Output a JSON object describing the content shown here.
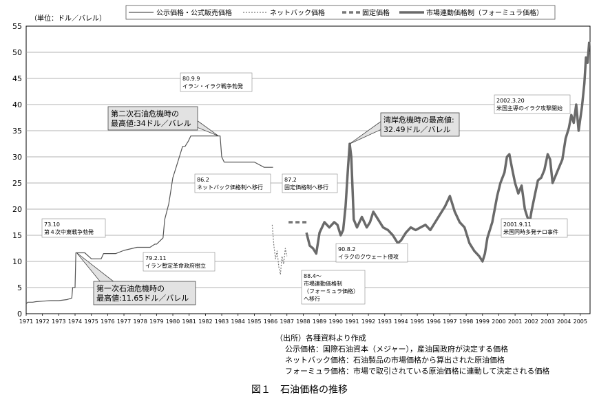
{
  "chart_data": {
    "type": "line",
    "unit_label": "（単位：ドル／バレル）",
    "ylim": [
      0,
      55
    ],
    "y_ticks": [
      0,
      5,
      10,
      15,
      20,
      25,
      30,
      35,
      40,
      45,
      50,
      55
    ],
    "xlim": [
      1971,
      2005.6
    ],
    "x_tick_labels": [
      "1971",
      "1972",
      "1973",
      "1974",
      "1975",
      "1976",
      "1977",
      "1978",
      "1979",
      "1980",
      "1981",
      "1982",
      "1983",
      "1984",
      "1985",
      "1986",
      "1987",
      "1988",
      "1989",
      "1990",
      "1991",
      "1992",
      "1993",
      "1994",
      "1995",
      "1996",
      "1997",
      "1998",
      "1999",
      "2000",
      "2001",
      "2002",
      "2003",
      "2004",
      "2005"
    ],
    "grid": "horizontal",
    "legend": "top",
    "series": [
      {
        "name": "公示価格・公式販売価格",
        "style": "thin",
        "color": "#555555",
        "x": [
          1971.0,
          1971.1,
          1971.4,
          1971.6,
          1972.0,
          1972.5,
          1973.0,
          1973.5,
          1973.8,
          1973.85,
          1974.0,
          1974.05,
          1974.6,
          1975.0,
          1975.6,
          1975.75,
          1976.5,
          1977.0,
          1977.8,
          1978.6,
          1978.9,
          1979.0,
          1979.4,
          1979.5,
          1979.75,
          1979.9,
          1980.0,
          1980.2,
          1980.4,
          1980.6,
          1980.75,
          1980.95,
          1981.1,
          1981.9,
          1982.0,
          1982.9,
          1983.0,
          1983.15,
          1984.0,
          1985.0,
          1985.6,
          1985.75,
          1986.15
        ],
        "y": [
          1.9,
          2.2,
          2.2,
          2.3,
          2.4,
          2.5,
          2.5,
          2.7,
          3.0,
          5.0,
          5.0,
          11.65,
          11.65,
          10.5,
          10.5,
          11.5,
          11.5,
          12.1,
          12.7,
          12.7,
          13.3,
          13.3,
          14.5,
          18.0,
          21.0,
          24.0,
          26.0,
          28.0,
          30.0,
          32.0,
          32.0,
          33.0,
          34.0,
          34.0,
          34.0,
          34.0,
          30.0,
          29.0,
          29.0,
          29.0,
          28.0,
          28.0,
          28.0
        ]
      },
      {
        "name": "ネットバック価格",
        "style": "dotted",
        "color": "#777777",
        "x": [
          1986.1,
          1986.2,
          1986.3,
          1986.4,
          1986.5,
          1986.6,
          1986.7,
          1986.8,
          1986.9,
          1987.0
        ],
        "y": [
          17.0,
          13.0,
          10.5,
          12.0,
          9.0,
          7.5,
          11.0,
          9.5,
          12.5,
          11.0
        ]
      },
      {
        "name": "固定価格",
        "style": "dashed",
        "color": "#777777",
        "x": [
          1987.1,
          1988.2
        ],
        "y": [
          17.5,
          17.5
        ]
      },
      {
        "name": "市場連動価格制（フォーミュラ価格）",
        "style": "thick",
        "color": "#6a6a6a",
        "x": [
          1988.2,
          1988.4,
          1988.6,
          1988.8,
          1989.0,
          1989.3,
          1989.6,
          1989.9,
          1990.1,
          1990.3,
          1990.45,
          1990.6,
          1990.75,
          1990.85,
          1990.95,
          1991.1,
          1991.3,
          1991.6,
          1991.9,
          1992.1,
          1992.3,
          1992.6,
          1992.9,
          1993.2,
          1993.5,
          1993.8,
          1994.0,
          1994.3,
          1994.6,
          1994.9,
          1995.2,
          1995.5,
          1995.8,
          1996.1,
          1996.4,
          1996.7,
          1997.0,
          1997.3,
          1997.6,
          1997.9,
          1998.2,
          1998.5,
          1998.8,
          1999.0,
          1999.15,
          1999.3,
          1999.6,
          1999.9,
          2000.1,
          2000.35,
          2000.5,
          2000.65,
          2000.8,
          2001.0,
          2001.2,
          2001.4,
          2001.6,
          2001.75,
          2001.9,
          2002.0,
          2002.2,
          2002.4,
          2002.6,
          2002.8,
          2003.0,
          2003.15,
          2003.3,
          2003.5,
          2003.7,
          2003.9,
          2004.1,
          2004.3,
          2004.45,
          2004.6,
          2004.75,
          2004.9,
          2005.1,
          2005.25,
          2005.35,
          2005.45,
          2005.55
        ],
        "y": [
          15.5,
          13.0,
          12.5,
          11.5,
          15.5,
          17.5,
          16.5,
          17.5,
          17.0,
          15.0,
          16.0,
          20.5,
          28.0,
          32.49,
          30.0,
          18.0,
          16.5,
          18.5,
          16.5,
          17.5,
          19.5,
          18.0,
          16.5,
          16.0,
          15.0,
          13.5,
          14.0,
          15.5,
          16.5,
          16.0,
          16.5,
          17.0,
          16.0,
          17.5,
          19.0,
          20.5,
          22.5,
          19.5,
          17.5,
          16.5,
          13.5,
          12.0,
          11.0,
          10.0,
          11.5,
          14.5,
          17.5,
          22.5,
          25.0,
          27.0,
          30.0,
          30.5,
          28.0,
          25.0,
          23.0,
          24.5,
          20.0,
          18.5,
          17.5,
          19.5,
          22.5,
          25.5,
          26.0,
          27.5,
          30.5,
          29.5,
          25.0,
          26.5,
          28.0,
          29.5,
          33.5,
          35.5,
          38.0,
          36.5,
          40.0,
          35.0,
          39.5,
          44.0,
          49.0,
          48.0,
          52.0
        ]
      }
    ],
    "annotations": [
      {
        "text": [
          "73.10",
          "第４次中東戦争勃発"
        ]
      },
      {
        "text": [
          "79.2.11",
          "イラン暫定革命政府樹立"
        ]
      },
      {
        "text": [
          "80.9.9",
          "イラン・イラク戦争勃発"
        ]
      },
      {
        "text": [
          "86.2",
          "ネットバック価格制へ移行"
        ]
      },
      {
        "text": [
          "87.2",
          "固定価格制へ移行"
        ]
      },
      {
        "text": [
          "88.4～",
          "市場連動価格制",
          "（フォーミュラ価格）",
          "へ移行"
        ]
      },
      {
        "text": [
          "90.8.2",
          "イラクのクウェート侵攻"
        ]
      },
      {
        "text": [
          "2001.9.11",
          "米国同時多発テロ事件"
        ]
      },
      {
        "text": [
          "2002.3.20",
          "米国主導のイラク攻撃開始"
        ]
      }
    ],
    "callouts": [
      {
        "text": [
          "第一次石油危機時の",
          "最高値:11.65ドル／バレル"
        ],
        "x": 1974.1,
        "y": 11.65
      },
      {
        "text": [
          "第二次石油危機時の",
          "最高値:34ドル／バレル"
        ],
        "x": 1982.8,
        "y": 34.0
      },
      {
        "text": [
          "湾岸危機時の最高値:",
          "32.49ドル／バレル"
        ],
        "x": 1990.85,
        "y": 32.49
      }
    ]
  },
  "notes": {
    "source": "（出所）各種資料より作成",
    "lines": [
      "公示価格：国際石油資本（メジャー），産油国政府が決定する価格",
      "ネットバック価格：石油製品の市場価格から算出された原油価格",
      "フォーミュラ価格：市場で取引されている原油価格に連動して決定される価格"
    ]
  },
  "caption": "図１　石油価格の推移"
}
